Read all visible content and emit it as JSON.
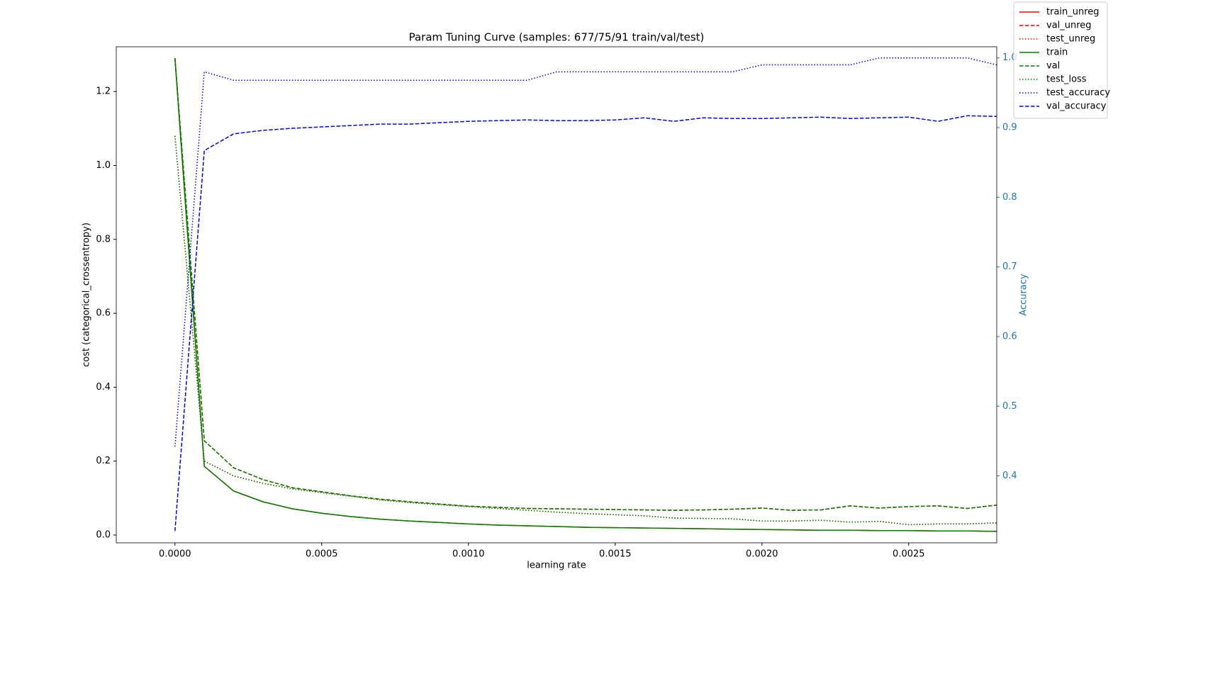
{
  "chart_data": {
    "type": "line",
    "title": "Param Tuning Curve (samples: 677/75/91 train/val/test)",
    "xlabel": "learning rate",
    "ylabel": "cost (categorical_crossentropy)",
    "y2label": "Accuracy",
    "y2color": "#1f77b4",
    "legend": "upper right",
    "grid": false,
    "x": [
      0,
      0.0001,
      0.0002,
      0.0003,
      0.0004,
      0.0005,
      0.0006,
      0.0007,
      0.0008,
      0.0009,
      0.001,
      0.0011,
      0.0012,
      0.0013,
      0.0014,
      0.0015,
      0.0016,
      0.0017,
      0.0018,
      0.0019,
      0.002,
      0.0021,
      0.0022,
      0.0023,
      0.0024,
      0.0025,
      0.0026,
      0.0027,
      0.0028
    ],
    "xlim": [
      -0.0002,
      0.0028
    ],
    "xticks": [
      {
        "value": 0,
        "label": "0.0000"
      },
      {
        "value": 0.0005,
        "label": "0.0005"
      },
      {
        "value": 0.001,
        "label": "0.0010"
      },
      {
        "value": 0.0015,
        "label": "0.0015"
      },
      {
        "value": 0.002,
        "label": "0.0020"
      },
      {
        "value": 0.0025,
        "label": "0.0025"
      }
    ],
    "ylim": [
      -0.021,
      1.321
    ],
    "yticks": [
      {
        "value": 0,
        "label": "0.0"
      },
      0.2,
      0.4,
      0.6,
      0.8,
      {
        "value": 1,
        "label": "1.0"
      },
      1.2
    ],
    "y2lim": [
      0.304,
      1.016
    ],
    "y2ticks": [
      0.4,
      0.5,
      0.6,
      0.7,
      0.8,
      0.9,
      {
        "value": 1,
        "label": "1.0"
      }
    ],
    "series": [
      {
        "name": "train_unreg",
        "color": "#ff0000",
        "style": "solid",
        "axis": "y",
        "values": [
          1.29,
          0.186,
          0.119,
          0.09,
          0.071,
          0.059,
          0.05,
          0.043,
          0.038,
          0.034,
          0.03,
          0.027,
          0.025,
          0.023,
          0.021,
          0.02,
          0.019,
          0.018,
          0.017,
          0.016,
          0.015,
          0.014,
          0.013,
          0.013,
          0.012,
          0.012,
          0.011,
          0.011,
          0.01
        ]
      },
      {
        "name": "val_unreg",
        "color": "#ff0000",
        "style": "dashed",
        "axis": "y",
        "values": [
          1.29,
          0.255,
          0.182,
          0.15,
          0.128,
          0.117,
          0.106,
          0.097,
          0.09,
          0.084,
          0.078,
          0.075,
          0.072,
          0.071,
          0.07,
          0.069,
          0.068,
          0.067,
          0.068,
          0.07,
          0.073,
          0.067,
          0.068,
          0.079,
          0.073,
          0.077,
          0.079,
          0.072,
          0.081
        ]
      },
      {
        "name": "test_unreg",
        "color": "#ff0000",
        "style": "dotted",
        "axis": "y",
        "values": [
          1.08,
          0.2,
          0.16,
          0.14,
          0.125,
          0.115,
          0.105,
          0.095,
          0.088,
          0.082,
          0.077,
          0.072,
          0.067,
          0.062,
          0.058,
          0.055,
          0.052,
          0.046,
          0.045,
          0.044,
          0.038,
          0.038,
          0.04,
          0.035,
          0.037,
          0.028,
          0.03,
          0.03,
          0.033
        ]
      },
      {
        "name": "train",
        "color": "#008000",
        "style": "solid",
        "axis": "y",
        "values": [
          1.29,
          0.186,
          0.119,
          0.09,
          0.071,
          0.059,
          0.05,
          0.043,
          0.038,
          0.034,
          0.03,
          0.027,
          0.025,
          0.023,
          0.021,
          0.02,
          0.019,
          0.018,
          0.017,
          0.016,
          0.015,
          0.014,
          0.013,
          0.013,
          0.012,
          0.012,
          0.011,
          0.011,
          0.01
        ]
      },
      {
        "name": "val",
        "color": "#008000",
        "style": "dashed",
        "axis": "y",
        "values": [
          1.29,
          0.255,
          0.182,
          0.15,
          0.128,
          0.117,
          0.106,
          0.097,
          0.09,
          0.084,
          0.078,
          0.075,
          0.072,
          0.071,
          0.07,
          0.069,
          0.068,
          0.067,
          0.068,
          0.07,
          0.073,
          0.067,
          0.068,
          0.079,
          0.073,
          0.077,
          0.079,
          0.072,
          0.081
        ]
      },
      {
        "name": "test_loss",
        "color": "#008000",
        "style": "dotted",
        "axis": "y",
        "values": [
          1.08,
          0.2,
          0.16,
          0.14,
          0.125,
          0.115,
          0.105,
          0.095,
          0.088,
          0.082,
          0.077,
          0.072,
          0.067,
          0.062,
          0.058,
          0.055,
          0.052,
          0.046,
          0.045,
          0.044,
          0.038,
          0.038,
          0.04,
          0.035,
          0.037,
          0.028,
          0.03,
          0.03,
          0.033
        ]
      },
      {
        "name": "test_accuracy",
        "color": "#0000ff",
        "style": "dotted",
        "axis": "y2",
        "values": [
          0.442,
          0.98,
          0.968,
          0.968,
          0.968,
          0.968,
          0.968,
          0.968,
          0.968,
          0.968,
          0.968,
          0.968,
          0.968,
          0.98,
          0.98,
          0.98,
          0.98,
          0.98,
          0.98,
          0.98,
          0.99,
          0.99,
          0.99,
          0.99,
          1.0,
          1.0,
          1.0,
          1.0,
          0.99
        ]
      },
      {
        "name": "val_accuracy",
        "color": "#0000ff",
        "style": "dashed",
        "axis": "y2",
        "values": [
          0.321,
          0.867,
          0.891,
          0.896,
          0.899,
          0.901,
          0.903,
          0.905,
          0.905,
          0.907,
          0.909,
          0.91,
          0.911,
          0.91,
          0.91,
          0.911,
          0.914,
          0.909,
          0.914,
          0.913,
          0.913,
          0.914,
          0.915,
          0.913,
          0.914,
          0.915,
          0.909,
          0.917,
          0.916
        ]
      }
    ]
  }
}
